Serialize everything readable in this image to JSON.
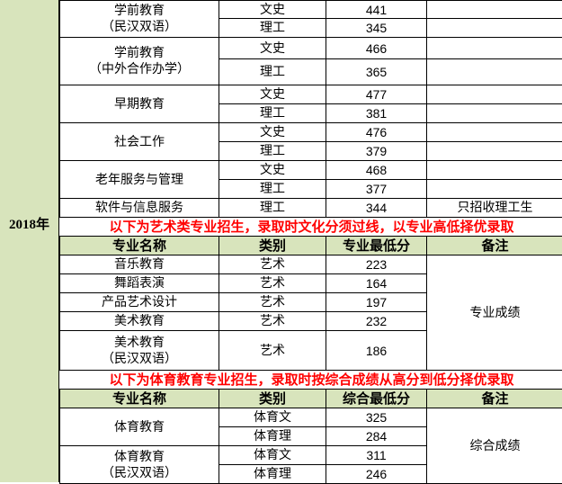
{
  "year": "2018年",
  "colors": {
    "header_bg": "#d8e4bc",
    "banner_text": "#ff0000"
  },
  "section1": {
    "rows": [
      {
        "major": "学前教育\n（民汉双语）",
        "entries": [
          {
            "type": "文史",
            "score": "441",
            "note": ""
          },
          {
            "type": "理工",
            "score": "345",
            "note": ""
          }
        ]
      },
      {
        "major": "学前教育\n（中外合作办学）",
        "entries": [
          {
            "type": "文史",
            "score": "466",
            "note": ""
          },
          {
            "type": "理工",
            "score": "365",
            "note": ""
          }
        ]
      },
      {
        "major": "早期教育",
        "entries": [
          {
            "type": "文史",
            "score": "477",
            "note": ""
          },
          {
            "type": "理工",
            "score": "381",
            "note": ""
          }
        ]
      },
      {
        "major": "社会工作",
        "entries": [
          {
            "type": "文史",
            "score": "476",
            "note": ""
          },
          {
            "type": "理工",
            "score": "379",
            "note": ""
          }
        ]
      },
      {
        "major": "老年服务与管理",
        "entries": [
          {
            "type": "文史",
            "score": "468",
            "note": ""
          },
          {
            "type": "理工",
            "score": "377",
            "note": ""
          }
        ]
      },
      {
        "major": "软件与信息服务",
        "entries": [
          {
            "type": "理工",
            "score": "344",
            "note": "只招收理工生"
          }
        ]
      }
    ]
  },
  "section2": {
    "banner": "以下为艺术类专业招生，录取时文化分须过线，以专业高低择优录取",
    "headers": [
      "专业名称",
      "类别",
      "专业最低分",
      "备注"
    ],
    "note": "专业成绩",
    "rows": [
      {
        "major": "音乐教育",
        "entries": [
          {
            "type": "艺术",
            "score": "223"
          }
        ]
      },
      {
        "major": "舞蹈表演",
        "entries": [
          {
            "type": "艺术",
            "score": "164"
          }
        ]
      },
      {
        "major": "产品艺术设计",
        "entries": [
          {
            "type": "艺术",
            "score": "197"
          }
        ]
      },
      {
        "major": "美术教育",
        "entries": [
          {
            "type": "艺术",
            "score": "232"
          }
        ]
      },
      {
        "major": "美术教育\n（民汉双语）",
        "entries": [
          {
            "type": "艺术",
            "score": "186"
          }
        ]
      }
    ]
  },
  "section3": {
    "banner": "以下为体育教育专业招生，录取时按综合成绩从高分到低分择优录取",
    "headers": [
      "专业名称",
      "类别",
      "综合最低分",
      "备注"
    ],
    "note": "综合成绩",
    "rows": [
      {
        "major": "体育教育",
        "entries": [
          {
            "type": "体育文",
            "score": "325"
          },
          {
            "type": "体育理",
            "score": "284"
          }
        ]
      },
      {
        "major": "体育教育\n（民汉双语）",
        "entries": [
          {
            "type": "体育文",
            "score": "311"
          },
          {
            "type": "体育理",
            "score": "246"
          }
        ]
      }
    ]
  }
}
